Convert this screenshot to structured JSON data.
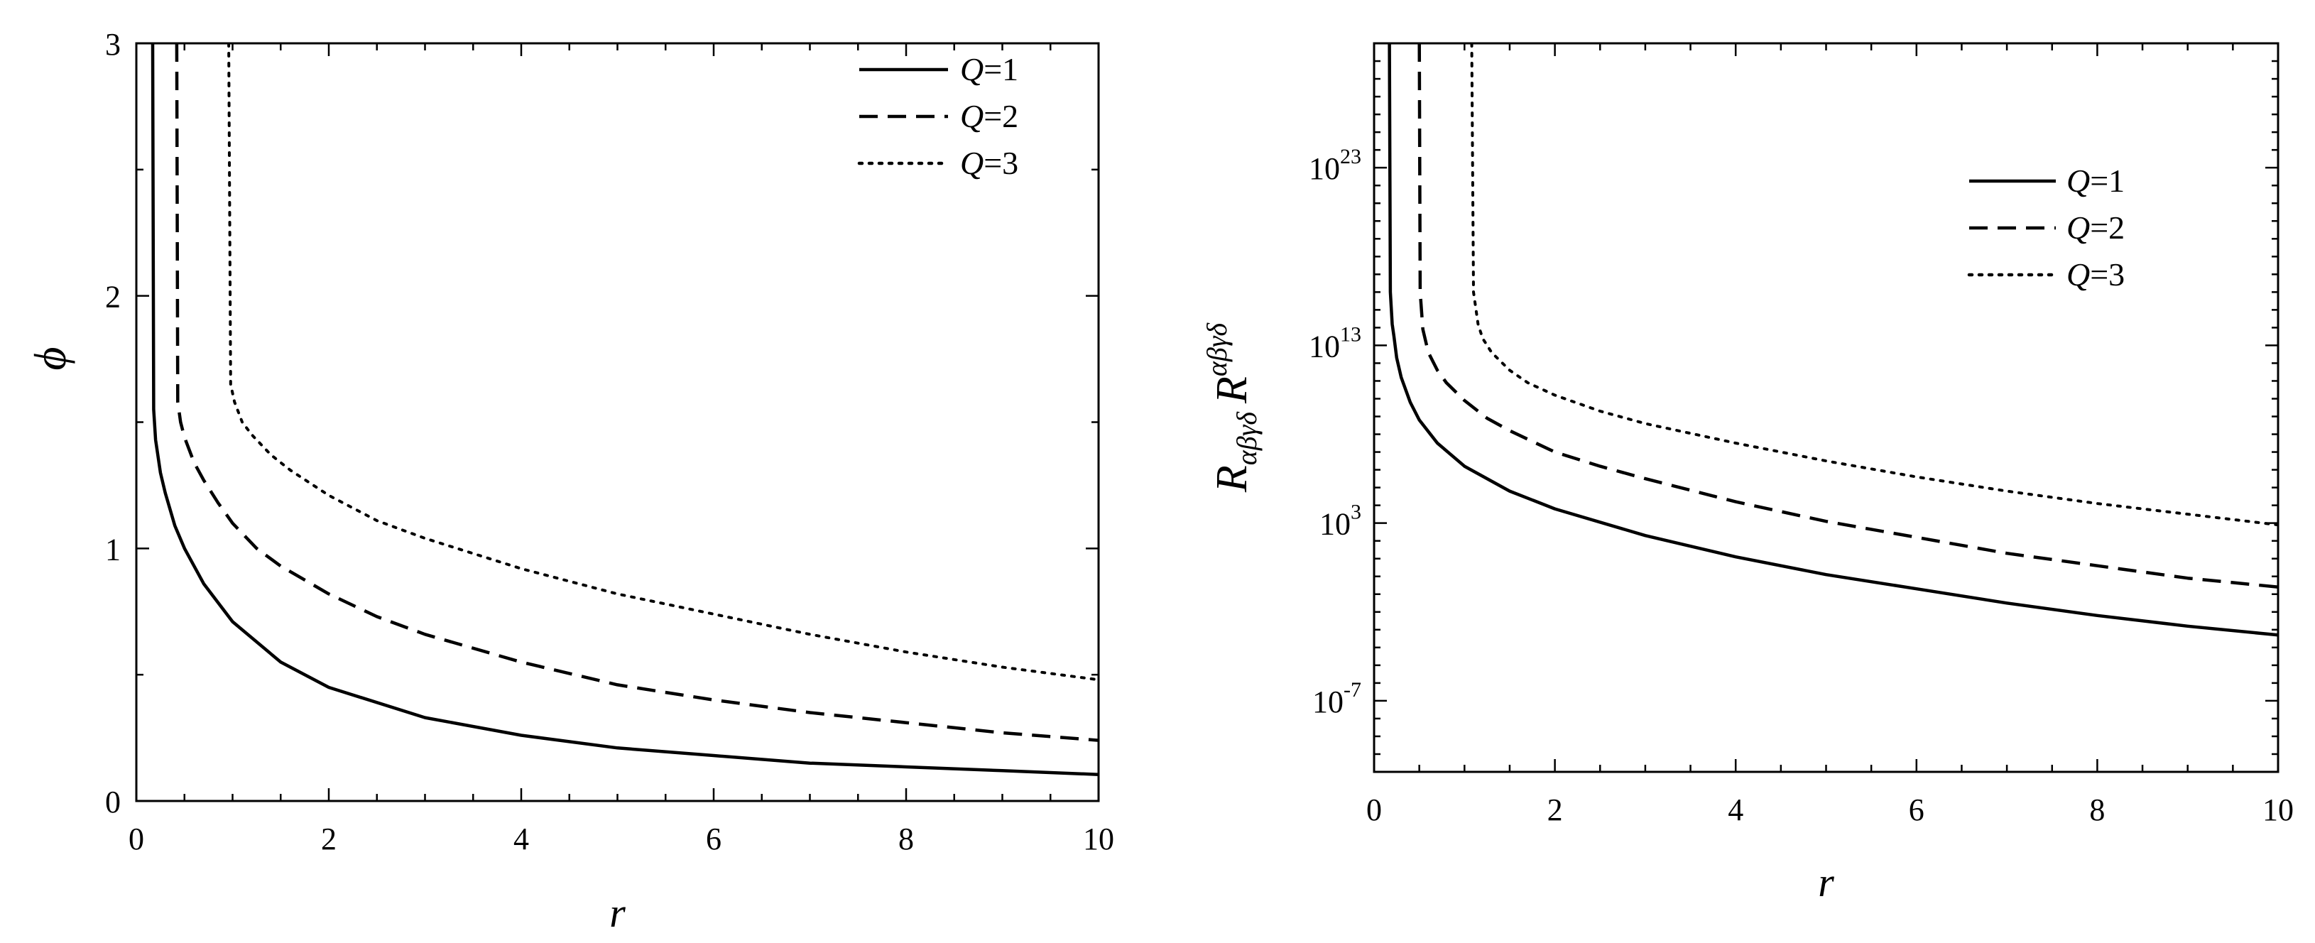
{
  "chart_data": [
    {
      "type": "line",
      "xlabel": "r",
      "ylabel": "ϕ",
      "xlim": [
        0,
        10
      ],
      "ylim": [
        0,
        3
      ],
      "y_scale": "linear",
      "x_ticks": [
        "0",
        "2",
        "4",
        "6",
        "8",
        "10"
      ],
      "y_ticks": [
        "0",
        "1",
        "2",
        "3"
      ],
      "legend_position": "top-right",
      "series": [
        {
          "name": "Q=1",
          "label_var": "Q",
          "label_val": "=1",
          "style": "solid",
          "x": [
            0.17,
            0.18,
            0.2,
            0.25,
            0.3,
            0.4,
            0.5,
            0.7,
            1,
            1.5,
            2,
            3,
            4,
            5,
            6,
            7,
            8,
            9,
            10
          ],
          "y": [
            3.0,
            1.55,
            1.43,
            1.3,
            1.22,
            1.09,
            1.0,
            0.86,
            0.71,
            0.55,
            0.45,
            0.33,
            0.26,
            0.21,
            0.18,
            0.15,
            0.135,
            0.12,
            0.105
          ]
        },
        {
          "name": "Q=2",
          "label_var": "Q",
          "label_val": "=2",
          "style": "dashed",
          "x": [
            0.42,
            0.43,
            0.46,
            0.5,
            0.6,
            0.7,
            0.85,
            1,
            1.25,
            1.5,
            2,
            2.5,
            3,
            4,
            5,
            6,
            7,
            8,
            9,
            10
          ],
          "y": [
            3.0,
            1.58,
            1.5,
            1.44,
            1.34,
            1.27,
            1.18,
            1.1,
            1.0,
            0.93,
            0.82,
            0.73,
            0.66,
            0.55,
            0.46,
            0.4,
            0.35,
            0.31,
            0.27,
            0.24
          ]
        },
        {
          "name": "Q=3",
          "label_var": "Q",
          "label_val": "=3",
          "style": "dotted",
          "x": [
            0.96,
            0.98,
            1.02,
            1.1,
            1.2,
            1.4,
            1.6,
            2,
            2.5,
            3,
            4,
            5,
            6,
            7,
            8,
            9,
            10
          ],
          "y": [
            3.0,
            1.65,
            1.58,
            1.5,
            1.45,
            1.37,
            1.31,
            1.21,
            1.11,
            1.04,
            0.92,
            0.82,
            0.74,
            0.66,
            0.59,
            0.53,
            0.48
          ]
        }
      ]
    },
    {
      "type": "line",
      "xlabel": "r",
      "ylabel": "R_{αβγδ} R^{αβγδ}",
      "ylabel_base": "R",
      "ylabel_sub": "αβγδ",
      "ylabel_base2": "R",
      "ylabel_sup": "αβγδ",
      "xlim": [
        0,
        10
      ],
      "ylim_log10": [
        -11,
        30
      ],
      "y_scale": "log",
      "x_ticks": [
        "0",
        "2",
        "4",
        "6",
        "8",
        "10"
      ],
      "y_ticks": [
        {
          "base": "10",
          "exp": "-7",
          "log10": -7
        },
        {
          "base": "10",
          "exp": "3",
          "log10": 3
        },
        {
          "base": "10",
          "exp": "13",
          "log10": 13
        },
        {
          "base": "10",
          "exp": "23",
          "log10": 23
        }
      ],
      "legend_position": "top-right",
      "series_log10_y": true,
      "series": [
        {
          "name": "Q=1",
          "label_var": "Q",
          "label_val": "=1",
          "style": "solid",
          "x": [
            0.17,
            0.18,
            0.2,
            0.22,
            0.25,
            0.3,
            0.4,
            0.5,
            0.7,
            1,
            1.5,
            2,
            3,
            4,
            5,
            6,
            7,
            8,
            9,
            10
          ],
          "y": [
            30,
            16,
            14.2,
            13.5,
            12.3,
            11.2,
            9.8,
            8.8,
            7.5,
            6.2,
            4.8,
            3.8,
            2.3,
            1.1,
            0.1,
            -0.7,
            -1.5,
            -2.2,
            -2.8,
            -3.3
          ]
        },
        {
          "name": "Q=2",
          "label_var": "Q",
          "label_val": "=2",
          "style": "dashed",
          "x": [
            0.5,
            0.51,
            0.54,
            0.6,
            0.7,
            0.8,
            1,
            1.25,
            1.5,
            2,
            2.5,
            3,
            4,
            5,
            6,
            7,
            8,
            9,
            10
          ],
          "y": [
            30,
            16,
            13.9,
            12.6,
            11.6,
            10.9,
            9.9,
            8.9,
            8.2,
            7.0,
            6.2,
            5.5,
            4.2,
            3.1,
            2.2,
            1.3,
            0.6,
            -0.1,
            -0.6
          ]
        },
        {
          "name": "Q=3",
          "label_var": "Q",
          "label_val": "=3",
          "style": "dotted",
          "x": [
            1.08,
            1.1,
            1.15,
            1.2,
            1.3,
            1.5,
            1.7,
            2,
            2.5,
            3,
            4,
            5,
            6,
            7,
            8,
            9,
            10
          ],
          "y": [
            30,
            16,
            14.2,
            13.4,
            12.6,
            11.6,
            10.9,
            10.2,
            9.3,
            8.6,
            7.5,
            6.5,
            5.6,
            4.8,
            4.1,
            3.5,
            2.9
          ]
        }
      ]
    }
  ]
}
